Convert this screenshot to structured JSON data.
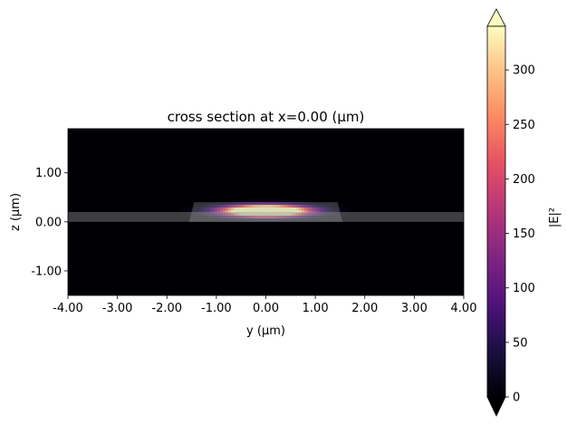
{
  "chart_data": {
    "type": "heatmap",
    "title": "cross section at x=0.00 (μm)",
    "xlabel": "y (μm)",
    "ylabel": "z (μm)",
    "xlim": [
      -4.0,
      4.0
    ],
    "ylim": [
      -1.5,
      1.9
    ],
    "x_ticks": [
      -4.0,
      -3.0,
      -2.0,
      -1.0,
      0.0,
      1.0,
      2.0,
      3.0,
      4.0
    ],
    "x_tick_labels": [
      "-4.00",
      "-3.00",
      "-2.00",
      "-1.00",
      "0.00",
      "1.00",
      "2.00",
      "3.00",
      "4.00"
    ],
    "y_ticks": [
      -1.0,
      0.0,
      1.0
    ],
    "y_tick_labels": [
      "-1.00",
      "0.00",
      "1.00"
    ],
    "colorbar": {
      "label": "|E|²",
      "range": [
        0,
        340
      ],
      "ticks": [
        0,
        50,
        100,
        150,
        200,
        250,
        300
      ],
      "tick_labels": [
        "0",
        "50",
        "100",
        "150",
        "200",
        "250",
        "300"
      ],
      "colormap": "magma",
      "extend": "both"
    },
    "field": {
      "center_y": 0.0,
      "center_z": 0.22,
      "sigma_y": 0.62,
      "sigma_z": 0.085,
      "peak": 340
    },
    "structure": {
      "slab_z": [
        0.0,
        0.2
      ],
      "ridge_z": [
        0.0,
        0.4
      ],
      "ridge_bottom_y": [
        -1.55,
        1.55
      ],
      "ridge_top_y": [
        -1.45,
        1.45
      ]
    }
  }
}
